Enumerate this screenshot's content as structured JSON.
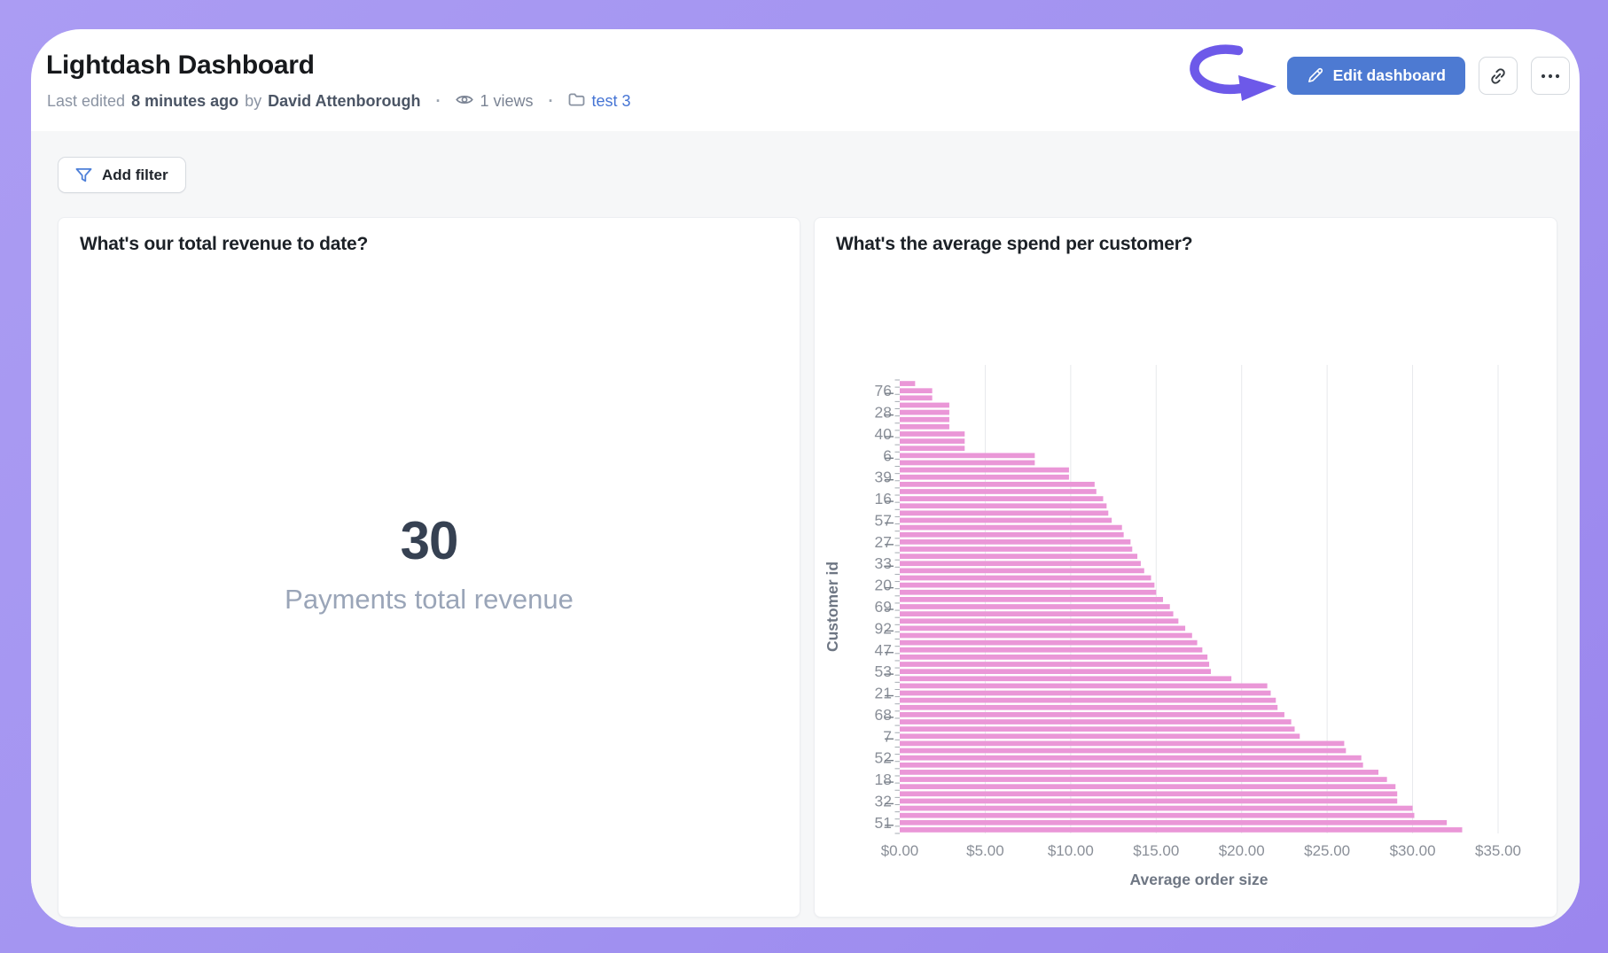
{
  "header": {
    "title": "Lightdash Dashboard",
    "last_edited_prefix": "Last edited",
    "last_edited_time": "8 minutes ago",
    "by_label": "by",
    "author": "David Attenborough",
    "separator": "·",
    "views": "1 views",
    "space": "test 3",
    "edit_button": "Edit dashboard"
  },
  "toolbar": {
    "add_filter": "Add filter"
  },
  "tiles": {
    "revenue": {
      "title": "What's our total revenue to date?",
      "value": "30",
      "label": "Payments total revenue"
    },
    "spend": {
      "title": "What's the average spend per customer?"
    }
  },
  "chart_data": {
    "type": "bar",
    "orientation": "horizontal",
    "title": "What's the average spend per customer?",
    "xlabel": "Average order size",
    "ylabel": "Customer id",
    "xlim": [
      0,
      35
    ],
    "x_ticks": [
      "$0.00",
      "$5.00",
      "$10.00",
      "$15.00",
      "$20.00",
      "$25.00",
      "$30.00",
      "$35.00"
    ],
    "grid": true,
    "legend": "none",
    "bar_color": "#ea97d7",
    "axis_text_color": "#8a8f98",
    "axis_name_color": "#6e7683",
    "gridline_color": "#e7e9ec",
    "labels": [
      "",
      "76",
      "",
      "",
      "28",
      "",
      "",
      "40",
      "",
      "",
      "6",
      "",
      "",
      "39",
      "",
      "",
      "16",
      "",
      "",
      "57",
      "",
      "",
      "27",
      "",
      "",
      "33",
      "",
      "",
      "20",
      "",
      "",
      "69",
      "",
      "",
      "92",
      "",
      "",
      "47",
      "",
      "",
      "53",
      "",
      "",
      "21",
      "",
      "",
      "68",
      "",
      "",
      "7",
      "",
      "",
      "52",
      "",
      "",
      "18",
      "",
      "",
      "32",
      "",
      "",
      "51",
      ""
    ],
    "values": [
      0.9,
      1.9,
      1.9,
      2.9,
      2.9,
      2.9,
      2.9,
      3.8,
      3.8,
      3.8,
      7.9,
      7.9,
      9.9,
      9.9,
      11.4,
      11.5,
      11.9,
      12.1,
      12.2,
      12.4,
      13.0,
      13.1,
      13.5,
      13.6,
      13.9,
      14.1,
      14.3,
      14.7,
      14.9,
      15.0,
      15.4,
      15.8,
      16.0,
      16.3,
      16.7,
      17.1,
      17.4,
      17.7,
      18.0,
      18.1,
      18.2,
      19.4,
      21.5,
      21.7,
      22.0,
      22.1,
      22.5,
      22.9,
      23.1,
      23.4,
      26.0,
      26.1,
      27.0,
      27.1,
      28.0,
      28.5,
      29.0,
      29.1,
      29.1,
      30.0,
      30.1,
      32.0,
      32.9
    ]
  },
  "colors": {
    "background_purple": "#a192f0",
    "accent_blue": "#4d7ad2",
    "annotation_purple": "#6d59e9",
    "link_blue": "#4574d4",
    "bar_pink": "#ea97d7",
    "card_body_gray": "#f6f7f8"
  }
}
